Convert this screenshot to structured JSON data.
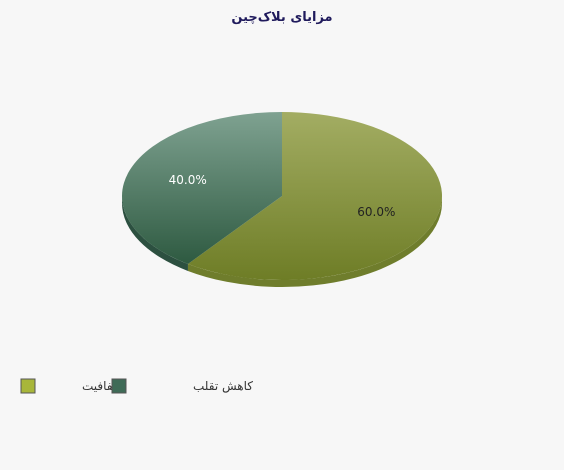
{
  "chart_data": {
    "type": "pie",
    "title": "مزایای بلاک‌چین",
    "categories": [
      "شفافیت",
      "کاهش تقلب"
    ],
    "values": [
      60.0,
      40.0
    ],
    "slice_labels": [
      "60.0%",
      "40.0%"
    ],
    "legend_placement": "bottom-left",
    "colors": {
      "slices": [
        "#8a9a3f",
        "#3f6b57"
      ],
      "slice_dark": [
        "#6f7d2c",
        "#2c5040"
      ],
      "legend_swatches": [
        "#a8b63a",
        "#3f6b57"
      ],
      "label_text": [
        "#222222",
        "#ffffff"
      ]
    }
  }
}
